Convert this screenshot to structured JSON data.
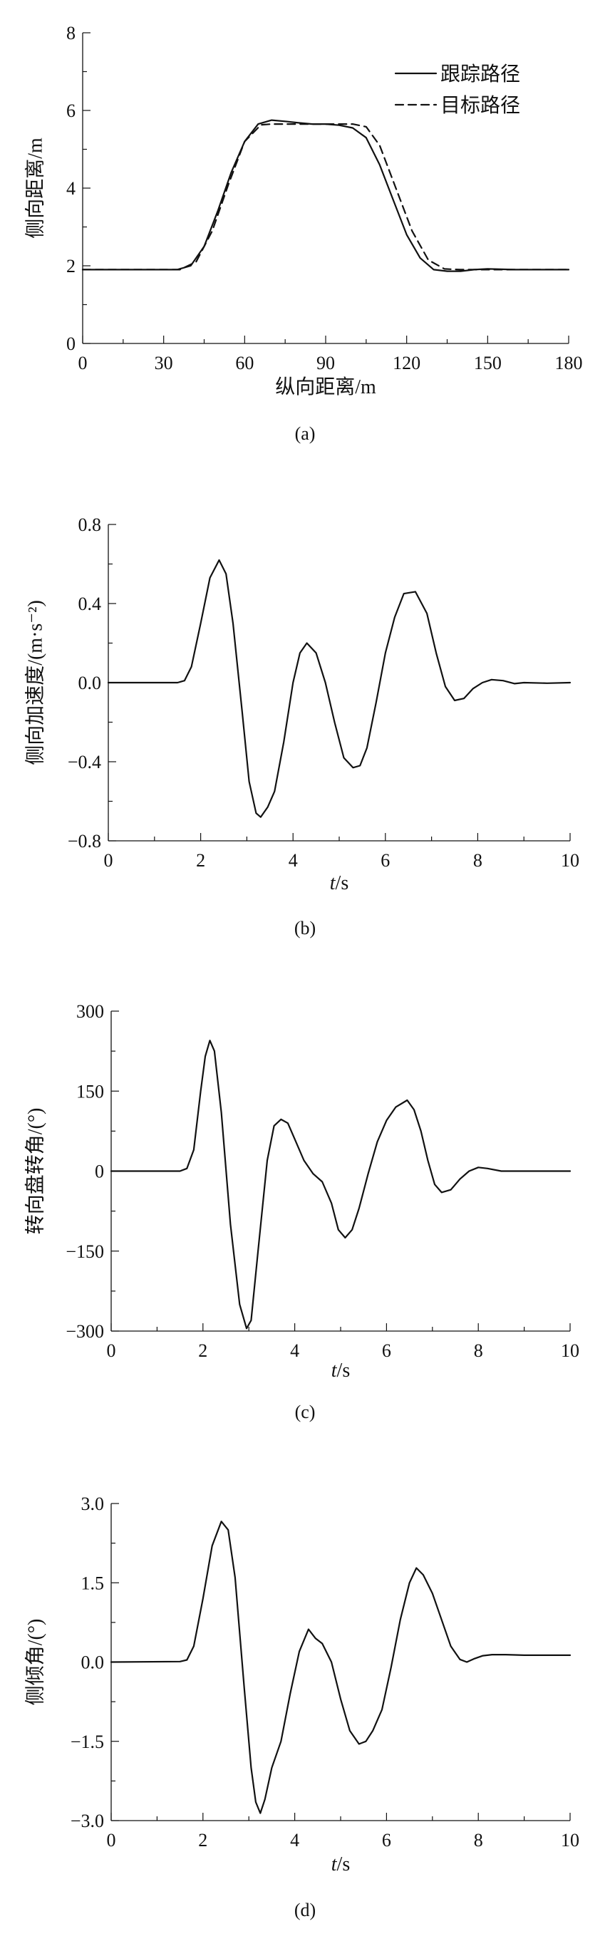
{
  "chart_data": [
    {
      "id": "a",
      "type": "line",
      "caption": "(a)",
      "xlabel": "纵向距离/m",
      "ylabel": "侧向距离/m",
      "xlim": [
        0,
        180
      ],
      "ylim": [
        0,
        8
      ],
      "xticks": [
        "0",
        "30",
        "60",
        "90",
        "120",
        "150",
        "180"
      ],
      "yticks": [
        "0",
        "2",
        "4",
        "6",
        "8"
      ],
      "legend_position": "top-right",
      "legend": [
        "跟踪路径",
        "目标路径"
      ],
      "series": [
        {
          "name": "跟踪路径",
          "style": "solid",
          "x": [
            0,
            20,
            35,
            40,
            45,
            50,
            55,
            60,
            65,
            70,
            75,
            80,
            85,
            90,
            95,
            100,
            105,
            110,
            115,
            120,
            125,
            130,
            135,
            140,
            145,
            150,
            160,
            180
          ],
          "y": [
            1.9,
            1.9,
            1.9,
            2.0,
            2.5,
            3.4,
            4.4,
            5.2,
            5.65,
            5.75,
            5.72,
            5.68,
            5.65,
            5.65,
            5.62,
            5.55,
            5.3,
            4.6,
            3.7,
            2.8,
            2.2,
            1.9,
            1.86,
            1.86,
            1.9,
            1.92,
            1.9,
            1.9
          ]
        },
        {
          "name": "目标路径",
          "style": "dashed",
          "x": [
            0,
            20,
            36,
            42,
            48,
            54,
            60,
            66,
            70,
            80,
            90,
            100,
            105,
            110,
            116,
            122,
            128,
            134,
            140,
            180
          ],
          "y": [
            1.9,
            1.9,
            1.9,
            2.1,
            2.9,
            4.1,
            5.2,
            5.63,
            5.65,
            5.65,
            5.65,
            5.65,
            5.58,
            5.1,
            4.0,
            2.9,
            2.15,
            1.92,
            1.9,
            1.9
          ]
        }
      ]
    },
    {
      "id": "b",
      "type": "line",
      "caption": "(b)",
      "xlabel": "t/s",
      "ylabel": "侧向加速度/(m·s⁻²)",
      "xlim": [
        0,
        10
      ],
      "ylim": [
        -0.8,
        0.8
      ],
      "xticks": [
        "0",
        "2",
        "4",
        "6",
        "8",
        "10"
      ],
      "yticks": [
        "0.8",
        "0.4",
        "0.0",
        "-0.4",
        "-0.8"
      ],
      "series": [
        {
          "style": "solid",
          "x": [
            0,
            1.5,
            1.65,
            1.8,
            2.0,
            2.2,
            2.4,
            2.55,
            2.7,
            2.9,
            3.05,
            3.2,
            3.3,
            3.45,
            3.6,
            3.8,
            4.0,
            4.15,
            4.3,
            4.5,
            4.7,
            4.9,
            5.1,
            5.3,
            5.45,
            5.6,
            5.8,
            6.0,
            6.2,
            6.4,
            6.65,
            6.9,
            7.1,
            7.3,
            7.5,
            7.7,
            7.9,
            8.1,
            8.3,
            8.55,
            8.8,
            9.0,
            9.5,
            10.0
          ],
          "y": [
            0.0,
            0.0,
            0.01,
            0.08,
            0.3,
            0.53,
            0.62,
            0.55,
            0.3,
            -0.15,
            -0.5,
            -0.66,
            -0.68,
            -0.63,
            -0.55,
            -0.3,
            0.0,
            0.15,
            0.2,
            0.15,
            0.0,
            -0.2,
            -0.38,
            -0.43,
            -0.42,
            -0.33,
            -0.1,
            0.15,
            0.33,
            0.45,
            0.46,
            0.35,
            0.15,
            -0.02,
            -0.09,
            -0.08,
            -0.03,
            0.0,
            0.015,
            0.01,
            -0.005,
            0.0,
            -0.003,
            0.0
          ]
        }
      ]
    },
    {
      "id": "c",
      "type": "line",
      "caption": "(c)",
      "xlabel": "t/s",
      "ylabel": "转向盘转角/(°)",
      "xlim": [
        0,
        10
      ],
      "ylim": [
        -300,
        300
      ],
      "xticks": [
        "0",
        "2",
        "4",
        "6",
        "8",
        "10"
      ],
      "yticks": [
        "300",
        "150",
        "0",
        "-150",
        "-300"
      ],
      "series": [
        {
          "style": "solid",
          "x": [
            0,
            1.5,
            1.65,
            1.8,
            1.95,
            2.05,
            2.15,
            2.25,
            2.4,
            2.6,
            2.8,
            2.95,
            3.05,
            3.2,
            3.4,
            3.55,
            3.7,
            3.85,
            4.0,
            4.2,
            4.4,
            4.6,
            4.8,
            4.95,
            5.1,
            5.25,
            5.4,
            5.6,
            5.8,
            6.0,
            6.2,
            6.45,
            6.6,
            6.75,
            6.9,
            7.05,
            7.2,
            7.4,
            7.6,
            7.8,
            8.0,
            8.2,
            8.5,
            9.0,
            10.0
          ],
          "y": [
            0,
            0,
            5,
            40,
            150,
            215,
            245,
            225,
            110,
            -100,
            -250,
            -295,
            -280,
            -150,
            20,
            85,
            97,
            90,
            60,
            20,
            -5,
            -20,
            -60,
            -110,
            -125,
            -110,
            -70,
            -5,
            55,
            95,
            120,
            133,
            115,
            75,
            20,
            -25,
            -40,
            -35,
            -15,
            0,
            7,
            5,
            0,
            0,
            0
          ]
        }
      ]
    },
    {
      "id": "d",
      "type": "line",
      "caption": "(d)",
      "xlabel": "t/s",
      "ylabel": "侧倾角/(°)",
      "xlim": [
        0,
        10
      ],
      "ylim": [
        -3.0,
        3.0
      ],
      "xticks": [
        "0",
        "2",
        "4",
        "6",
        "8",
        "10"
      ],
      "yticks": [
        "3.0",
        "1.5",
        "0.0",
        "-1.5",
        "-3.0"
      ],
      "series": [
        {
          "style": "solid",
          "x": [
            0,
            1.5,
            1.65,
            1.8,
            2.0,
            2.2,
            2.4,
            2.55,
            2.7,
            2.9,
            3.05,
            3.15,
            3.25,
            3.35,
            3.5,
            3.7,
            3.9,
            4.1,
            4.3,
            4.45,
            4.6,
            4.8,
            5.0,
            5.2,
            5.4,
            5.55,
            5.7,
            5.9,
            6.1,
            6.3,
            6.5,
            6.65,
            6.8,
            7.0,
            7.2,
            7.4,
            7.6,
            7.75,
            7.9,
            8.1,
            8.3,
            8.6,
            9.0,
            10.0
          ],
          "y": [
            0,
            0.01,
            0.04,
            0.3,
            1.2,
            2.2,
            2.66,
            2.5,
            1.6,
            -0.5,
            -2.0,
            -2.65,
            -2.86,
            -2.6,
            -2.0,
            -1.5,
            -0.6,
            0.2,
            0.62,
            0.45,
            0.35,
            0.0,
            -0.7,
            -1.3,
            -1.55,
            -1.5,
            -1.3,
            -0.9,
            -0.1,
            0.8,
            1.5,
            1.78,
            1.65,
            1.3,
            0.8,
            0.3,
            0.05,
            0.0,
            0.06,
            0.12,
            0.14,
            0.14,
            0.13,
            0.13
          ]
        }
      ]
    }
  ]
}
